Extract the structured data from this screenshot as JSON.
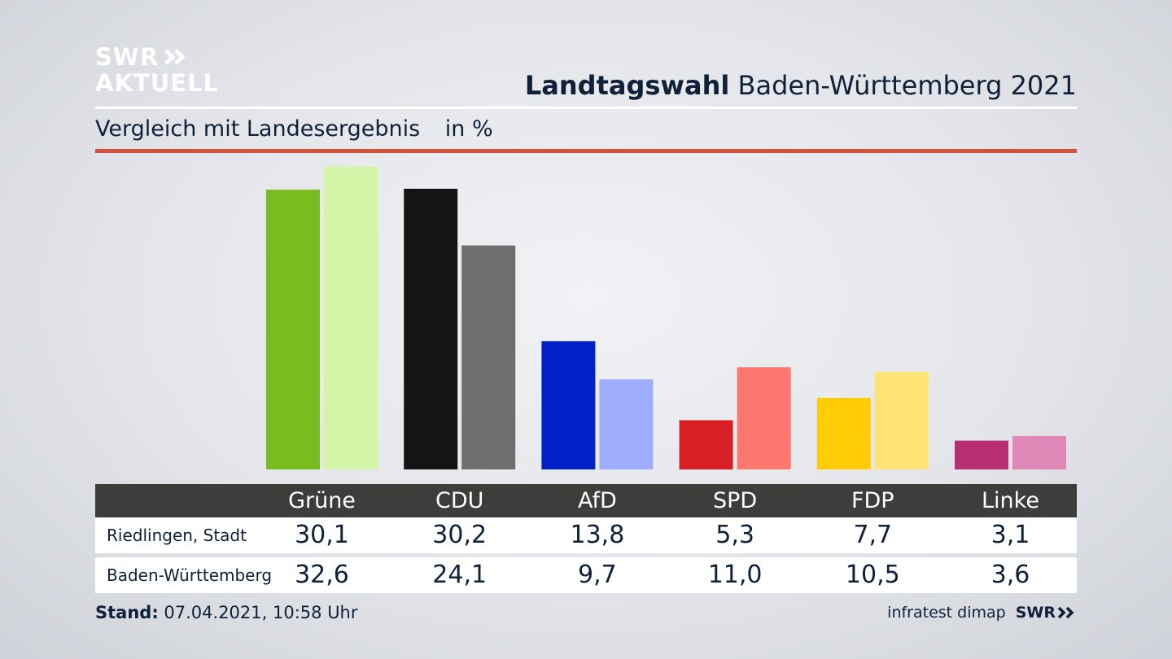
{
  "brand": {
    "line1": "SWR",
    "line2": "AKTUELL"
  },
  "header": {
    "title_bold": "Landtagswahl",
    "title_rest": "Baden-Württemberg 2021",
    "subtitle": "Vergleich mit Landesergebnis",
    "unit": "in %"
  },
  "colors": {
    "accent_red": "#d0523f",
    "table_header": "#3d3d3b"
  },
  "chart_data": {
    "type": "bar",
    "title": "Landtagswahl Baden-Württemberg 2021",
    "subtitle": "Vergleich mit Landesergebnis",
    "ylabel": "in %",
    "ylim": [
      0,
      33
    ],
    "categories": [
      "Grüne",
      "CDU",
      "AfD",
      "SPD",
      "FDP",
      "Linke"
    ],
    "series": [
      {
        "name": "Riedlingen, Stadt",
        "values": [
          30.1,
          30.2,
          13.8,
          5.3,
          7.7,
          3.1
        ],
        "display": [
          "30,1",
          "30,2",
          "13,8",
          "5,3",
          "7,7",
          "3,1"
        ],
        "colors": [
          "#79bc1f",
          "#141414",
          "#0020c8",
          "#d81f24",
          "#ffcc07",
          "#b92f72"
        ]
      },
      {
        "name": "Baden-Württemberg",
        "values": [
          32.6,
          24.1,
          9.7,
          11.0,
          10.5,
          3.6
        ],
        "display": [
          "32,6",
          "24,1",
          "9,7",
          "11,0",
          "10,5",
          "3,6"
        ],
        "colors": [
          "#d4f5a8",
          "#6f6e6c",
          "#9eadfd",
          "#ff7870",
          "#ffe375",
          "#e088b7"
        ]
      }
    ]
  },
  "footer": {
    "stand_label": "Stand:",
    "stand_value": "07.04.2021, 10:58 Uhr",
    "source": "infratest dimap",
    "source_brand": "SWR"
  }
}
